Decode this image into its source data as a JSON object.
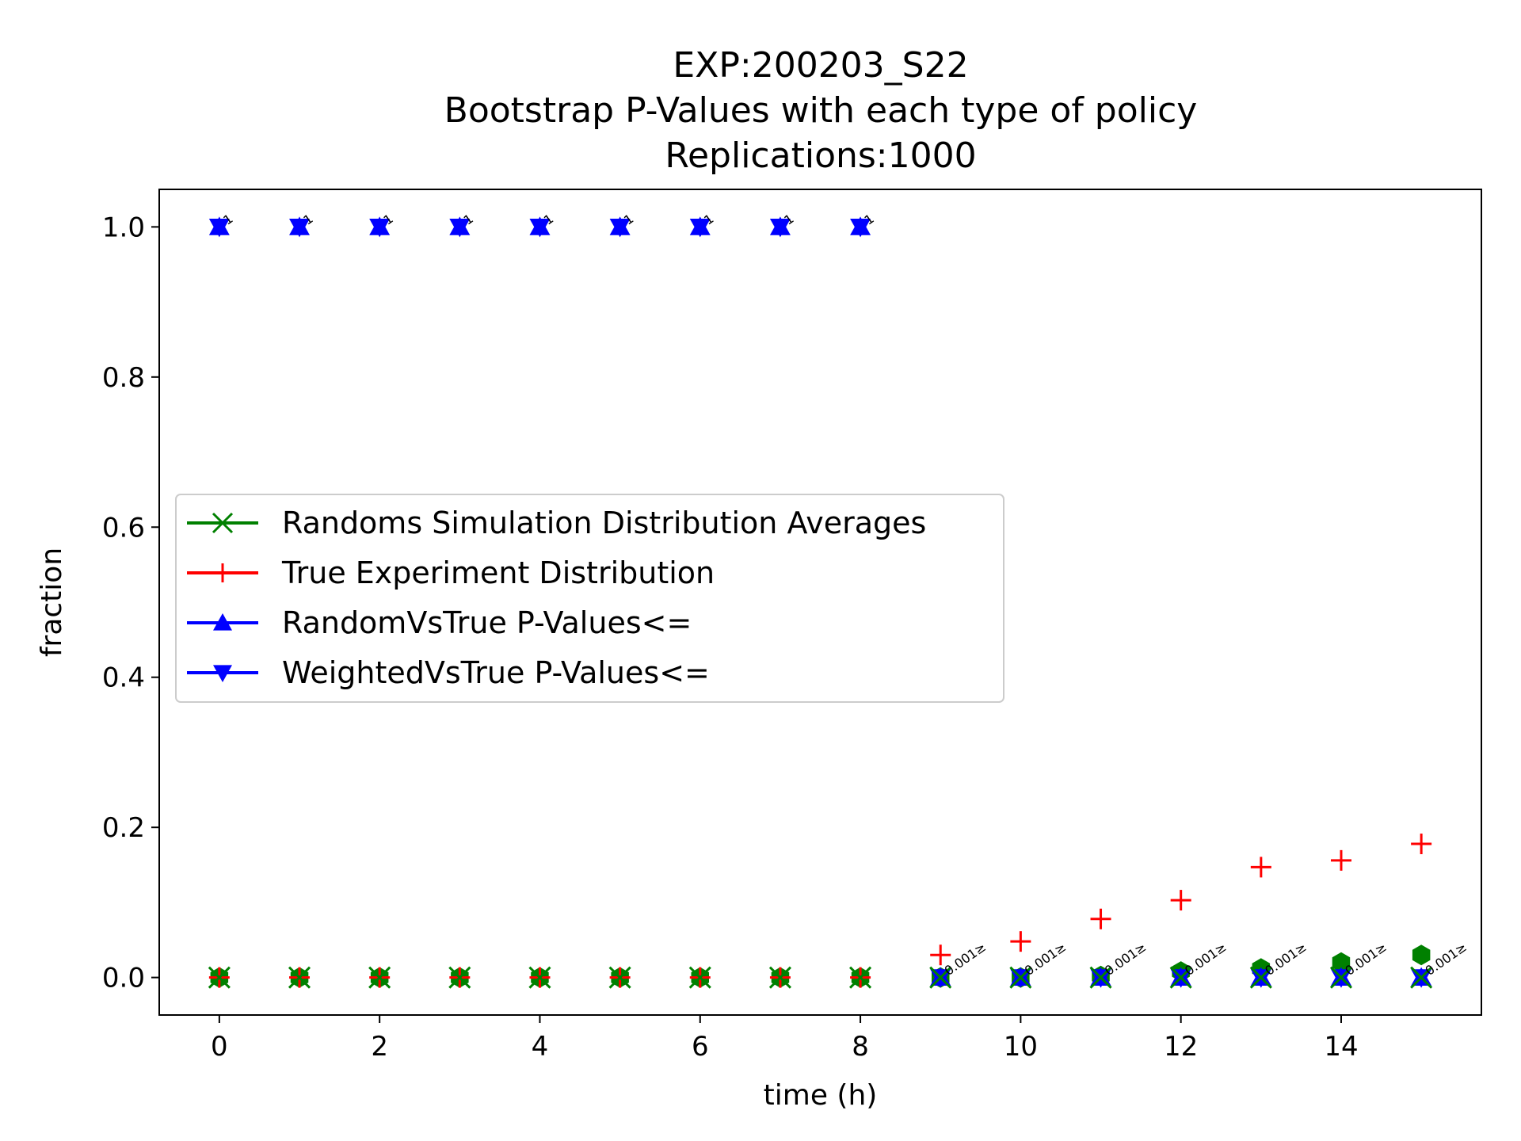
{
  "chart_data": {
    "type": "scatter",
    "title_lines": [
      "EXP:200203_S22",
      "Bootstrap P-Values with each type of policy",
      "Replications:1000"
    ],
    "xlabel": "time (h)",
    "ylabel": "fraction",
    "xlim": [
      -0.75,
      15.75
    ],
    "ylim": [
      -0.05,
      1.05
    ],
    "xticks": [
      0,
      2,
      4,
      6,
      8,
      10,
      12,
      14
    ],
    "xtick_labels": [
      "0",
      "2",
      "4",
      "6",
      "8",
      "10",
      "12",
      "14"
    ],
    "yticks": [
      0.0,
      0.2,
      0.4,
      0.6,
      0.8,
      1.0
    ],
    "ytick_labels": [
      "0.0",
      "0.2",
      "0.4",
      "0.6",
      "0.8",
      "1.0"
    ],
    "grid": false,
    "legend_position": "center-left",
    "x": [
      0,
      1,
      2,
      3,
      4,
      5,
      6,
      7,
      8,
      9,
      10,
      11,
      12,
      13,
      14,
      15
    ],
    "series": [
      {
        "name": "Randoms Simulation Distribution Averages",
        "marker": "x",
        "color": "#008000",
        "values": [
          0,
          0,
          0,
          0,
          0,
          0,
          0,
          0,
          0,
          0,
          0,
          0,
          0,
          0,
          0,
          0
        ]
      },
      {
        "name": "True Experiment Distribution",
        "marker": "+",
        "color": "#ff0000",
        "values": [
          0,
          0,
          0,
          0,
          0,
          0,
          0,
          0,
          0,
          0.03,
          0.048,
          0.078,
          0.103,
          0.147,
          0.156,
          0.178
        ]
      },
      {
        "name": "RandomVsTrue P-Values<=",
        "marker": "triangle-up",
        "color": "#0000ff",
        "values": [
          1,
          1,
          1,
          1,
          1,
          1,
          1,
          1,
          1,
          0,
          0,
          0,
          0,
          0,
          0,
          0
        ]
      },
      {
        "name": "WeightedVsTrue P-Values<=",
        "marker": "triangle-down",
        "color": "#0000ff",
        "values": [
          1,
          1,
          1,
          1,
          1,
          1,
          1,
          1,
          1,
          0,
          0,
          0,
          0,
          0,
          0,
          0
        ]
      }
    ],
    "extra_markers": {
      "marker": "hexagon",
      "color": "#008000",
      "x": [
        0,
        1,
        2,
        3,
        4,
        5,
        6,
        7,
        8,
        9,
        10,
        11,
        12,
        13,
        14,
        15
      ],
      "values": [
        0,
        0,
        0,
        0,
        0,
        0,
        0,
        0,
        0,
        0,
        0,
        0.002,
        0.008,
        0.012,
        0.02,
        0.03
      ]
    },
    "annotations": [
      {
        "x": 0,
        "y": 1.0,
        "text": "1"
      },
      {
        "x": 1,
        "y": 1.0,
        "text": "1"
      },
      {
        "x": 2,
        "y": 1.0,
        "text": "1"
      },
      {
        "x": 3,
        "y": 1.0,
        "text": "1"
      },
      {
        "x": 4,
        "y": 1.0,
        "text": "1"
      },
      {
        "x": 5,
        "y": 1.0,
        "text": "1"
      },
      {
        "x": 6,
        "y": 1.0,
        "text": "1"
      },
      {
        "x": 7,
        "y": 1.0,
        "text": "1"
      },
      {
        "x": 8,
        "y": 1.0,
        "text": "1"
      },
      {
        "x": 9,
        "y": 0.0,
        "text": "0.001≥"
      },
      {
        "x": 10,
        "y": 0.0,
        "text": "0.001≥"
      },
      {
        "x": 11,
        "y": 0.0,
        "text": "0.001≥"
      },
      {
        "x": 12,
        "y": 0.0,
        "text": "0.001≥"
      },
      {
        "x": 13,
        "y": 0.0,
        "text": "0.001≥"
      },
      {
        "x": 14,
        "y": 0.0,
        "text": "0.001≥"
      },
      {
        "x": 15,
        "y": 0.0,
        "text": "0.001≥"
      }
    ]
  }
}
